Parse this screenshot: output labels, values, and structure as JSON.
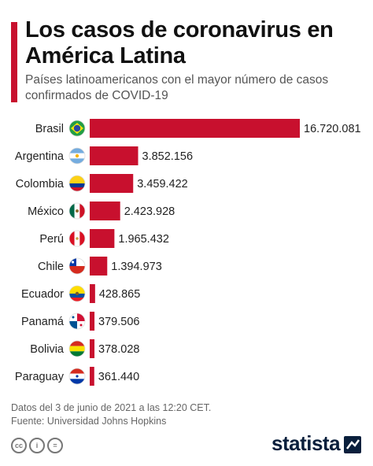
{
  "header": {
    "title": "Los casos de coronavirus en América Latina",
    "subtitle": "Países latinoamericanos con el mayor número de casos confirmados de COVID-19"
  },
  "chart_data": {
    "type": "bar",
    "orientation": "horizontal",
    "categories": [
      "Brasil",
      "Argentina",
      "Colombia",
      "México",
      "Perú",
      "Chile",
      "Ecuador",
      "Panamá",
      "Bolivia",
      "Paraguay"
    ],
    "values": [
      16720081,
      3852156,
      3459422,
      2423928,
      1965432,
      1394973,
      428865,
      379506,
      378028,
      361440
    ],
    "value_labels": [
      "16.720.081",
      "3.852.156",
      "3.459.422",
      "2.423.928",
      "1.965.432",
      "1.394.973",
      "428.865",
      "379.506",
      "378.028",
      "361.440"
    ],
    "bar_color": "#c8102e",
    "xlim": [
      0,
      16720081
    ],
    "grid": false,
    "legend": "none",
    "flags": [
      "brazil-flag-icon",
      "argentina-flag-icon",
      "colombia-flag-icon",
      "mexico-flag-icon",
      "peru-flag-icon",
      "chile-flag-icon",
      "ecuador-flag-icon",
      "panama-flag-icon",
      "bolivia-flag-icon",
      "paraguay-flag-icon"
    ]
  },
  "footer": {
    "note": "Datos del 3 de junio de 2021 a las 12:20 CET.",
    "source": "Fuente: Universidad Johns Hopkins"
  },
  "branding": {
    "logo": "statista",
    "license_icons": [
      "cc",
      "i",
      "="
    ]
  },
  "colors": {
    "accent": "#c8102e",
    "logo": "#0a1f3c"
  }
}
